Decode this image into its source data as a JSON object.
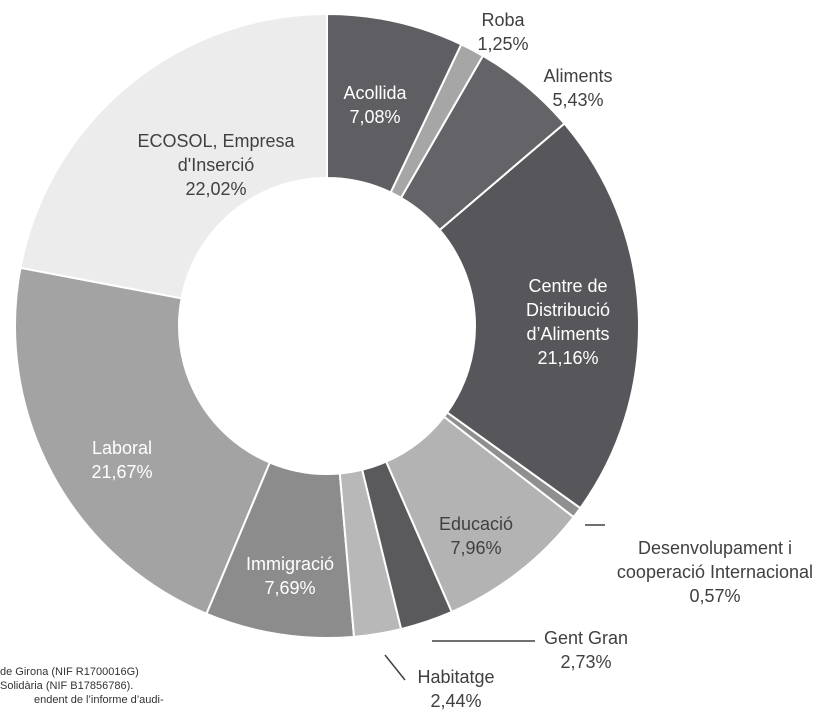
{
  "chart_data": {
    "type": "donut",
    "categories": [
      "Acollida",
      "Roba",
      "Aliments",
      "Centre de Distribució d’Aliments",
      "Desenvolupament i cooperació Internacional",
      "Educació",
      "Gent Gran",
      "Habitatge",
      "Immigració",
      "Laboral",
      "ECOSOL, Empresa d'Inserció"
    ],
    "values": [
      7.08,
      1.25,
      5.43,
      21.16,
      0.57,
      7.96,
      2.73,
      2.44,
      7.69,
      21.67,
      22.02
    ],
    "value_labels": [
      "7,08%",
      "1,25%",
      "5,43%",
      "21,16%",
      "0,57%",
      "7,96%",
      "2,73%",
      "2,44%",
      "7,69%",
      "21,67%",
      "22,02%"
    ],
    "colors": [
      "#5f5e62",
      "#a6a6a6",
      "#646367",
      "#57565a",
      "#8f8f8f",
      "#b3b3b3",
      "#5a595c",
      "#b8b8b8",
      "#8c8c8c",
      "#a3a3a3",
      "#ececec"
    ]
  },
  "footnote": [
    "de Girona (NIF R1700016G)",
    "Solidària (NIF B17856786).",
    "endent de l’informe d’audi-"
  ]
}
